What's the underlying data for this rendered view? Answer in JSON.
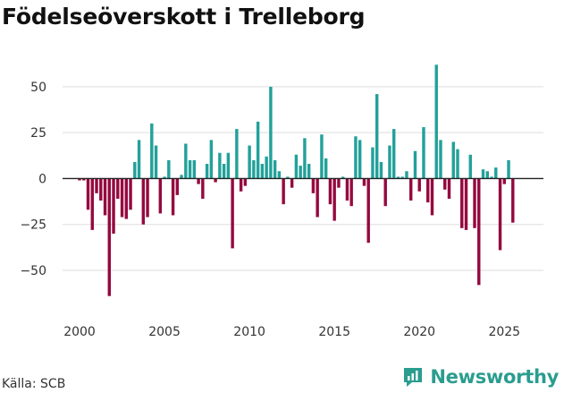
{
  "chart_data": {
    "type": "bar",
    "title": "Födelseöverskott i Trelleborg",
    "xlabel": "",
    "ylabel": "",
    "xlim": [
      1999.0,
      2027.3
    ],
    "ylim": [
      -70,
      68
    ],
    "x_ticks": [
      2000,
      2005,
      2010,
      2015,
      2020,
      2025
    ],
    "y_ticks": [
      -50,
      -25,
      0,
      25,
      50
    ],
    "colors": {
      "positive": "#22a19a",
      "negative": "#95093f",
      "grid": "#dddddd",
      "zero": "#222222"
    },
    "values": [
      -1,
      -1,
      -17,
      -28,
      -8,
      -12,
      -20,
      -64,
      -30,
      -11,
      -21,
      -22,
      -17,
      9,
      21,
      -25,
      -21,
      30,
      18,
      -19,
      1,
      10,
      -20,
      -9,
      2,
      19,
      10,
      10,
      -3,
      -11,
      8,
      21,
      -2,
      14,
      8,
      14,
      -38,
      27,
      -7,
      -4,
      18,
      10,
      31,
      8,
      12,
      50,
      10,
      4,
      -14,
      1,
      -5,
      13,
      7,
      22,
      8,
      -8,
      -21,
      24,
      11,
      -14,
      -23,
      -5,
      1,
      -12,
      -15,
      23,
      21,
      -4,
      -35,
      17,
      46,
      9,
      -15,
      18,
      27,
      1,
      1,
      4,
      -12,
      15,
      -7,
      28,
      -13,
      -20,
      62,
      21,
      -6,
      -11,
      20,
      16,
      -27,
      -28,
      13,
      -27,
      -58,
      5,
      4,
      1,
      6,
      -39,
      -3,
      10,
      -24
    ]
  },
  "source": "Källa: SCB",
  "brand": {
    "name": "Newsworthy",
    "icon": "newsworthy-logo-icon",
    "color": "#2a9d8f"
  }
}
